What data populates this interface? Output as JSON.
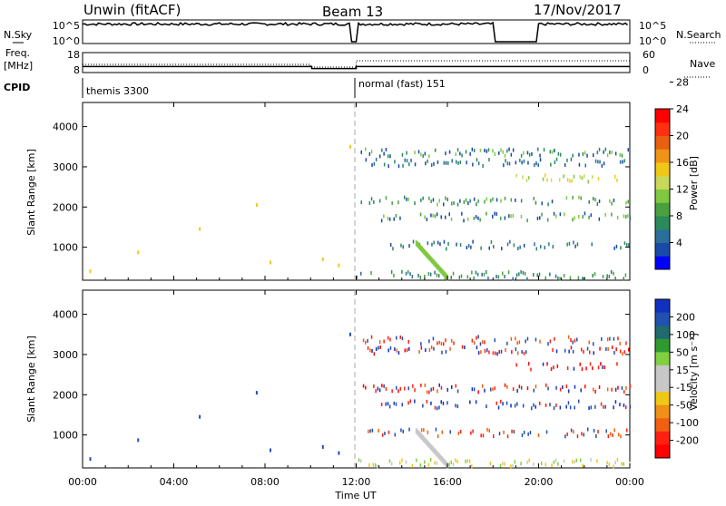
{
  "header": {
    "station": "Unwin (fitACF)",
    "beam": "Beam 13",
    "date": "17/Nov/2017"
  },
  "meta_panels": {
    "nsky_label": "N.Sky",
    "nsky_ticks": [
      "10^5",
      "10^0"
    ],
    "nsearch_label": "N.Search",
    "nsearch_ticks": [
      "10^5",
      "10^0"
    ],
    "freq_label_1": "Freq.",
    "freq_label_2": "[MHz]",
    "freq_ticks": [
      "18",
      "8"
    ],
    "nave_label": "Nave",
    "nave_ticks": [
      "60",
      "0"
    ],
    "cpid_label": "CPID",
    "cpid_segments": [
      {
        "name": "themis 3300",
        "start_hour": 0
      },
      {
        "name": "normal (fast) 151",
        "start_hour": 12
      }
    ],
    "data_gaps_hours": [
      [
        18.05,
        20.0
      ],
      [
        11.7,
        12.0
      ]
    ],
    "freq_steps": [
      {
        "from": 0,
        "to": 10.05,
        "mhz": 11
      },
      {
        "from": 10.05,
        "to": 12.0,
        "mhz": 10
      },
      {
        "from": 12.0,
        "to": 24,
        "mhz": 11
      }
    ]
  },
  "chart_data": [
    {
      "type": "heatmap",
      "name": "power-panel",
      "ylabel": "Slant Range [km]",
      "xlabel": "Time UT",
      "x_unit": "hours UT",
      "x_ticks": [
        "00:00",
        "04:00",
        "08:00",
        "12:00",
        "16:00",
        "20:00",
        "00:00"
      ],
      "xlim": [
        0,
        24
      ],
      "y_ticks": [
        1000,
        2000,
        3000,
        4000
      ],
      "ylim": [
        180,
        4600
      ],
      "colorbar": {
        "label": "Power [dB]",
        "ticks": [
          "4",
          "8",
          "12",
          "16",
          "20",
          "24",
          "28"
        ],
        "colors": [
          "#0000ff",
          "#1a4aa8",
          "#2c6e9a",
          "#2b8a5a",
          "#4aa040",
          "#80c840",
          "#c8d858",
          "#f0c818",
          "#f09418",
          "#e86010",
          "#ff3010",
          "#ff0000"
        ]
      },
      "scatter_bands": [
        {
          "range_km": 3100,
          "start_h": 12.4,
          "end_h": 24,
          "color_idx": [
            1,
            2,
            3
          ]
        },
        {
          "range_km": 3350,
          "start_h": 12.2,
          "end_h": 24,
          "color_idx": [
            1,
            3,
            5
          ]
        },
        {
          "range_km": 2700,
          "start_h": 19.0,
          "end_h": 24,
          "color_idx": [
            5,
            6,
            7
          ]
        },
        {
          "range_km": 2150,
          "start_h": 12.2,
          "end_h": 24,
          "color_idx": [
            3,
            4,
            5,
            1
          ]
        },
        {
          "range_km": 1750,
          "start_h": 13.0,
          "end_h": 24,
          "color_idx": [
            1,
            4,
            5
          ]
        },
        {
          "range_km": 1050,
          "start_h": 12.5,
          "end_h": 24,
          "color_idx": [
            1,
            2,
            3
          ]
        },
        {
          "range_km": 300,
          "start_h": 12.0,
          "end_h": 24,
          "color_idx": [
            2,
            3,
            4
          ]
        }
      ]
    },
    {
      "type": "heatmap",
      "name": "velocity-panel",
      "ylabel": "Slant Range [km]",
      "xlabel": "Time UT",
      "x_unit": "hours UT",
      "x_ticks": [
        "00:00",
        "04:00",
        "08:00",
        "12:00",
        "16:00",
        "20:00",
        "00:00"
      ],
      "xlim": [
        0,
        24
      ],
      "y_ticks": [
        1000,
        2000,
        3000,
        4000
      ],
      "ylim": [
        180,
        4600
      ],
      "colorbar": {
        "label": "Velocity [m s⁻¹]",
        "ticks": [
          "200",
          "100",
          "50",
          "15",
          "-15",
          "-50",
          "-100",
          "-200"
        ],
        "colors": [
          "#1030c0",
          "#2050b0",
          "#206a70",
          "#2f9a30",
          "#80d040",
          "#c8c8c8",
          "#c8c8c8",
          "#f0c818",
          "#f09018",
          "#f06010",
          "#ff2010",
          "#ff0000"
        ]
      },
      "scatter_bands": [
        {
          "range_km": 3100,
          "start_h": 12.4,
          "end_h": 24,
          "color_idx": [
            0,
            1,
            9,
            10,
            11
          ]
        },
        {
          "range_km": 3350,
          "start_h": 12.2,
          "end_h": 24,
          "color_idx": [
            1,
            10,
            9
          ]
        },
        {
          "range_km": 2700,
          "start_h": 19.0,
          "end_h": 24,
          "color_idx": [
            10,
            11,
            0
          ]
        },
        {
          "range_km": 2150,
          "start_h": 12.2,
          "end_h": 24,
          "color_idx": [
            0,
            1,
            10,
            11,
            9
          ]
        },
        {
          "range_km": 1750,
          "start_h": 13.0,
          "end_h": 24,
          "color_idx": [
            0,
            1,
            10
          ]
        },
        {
          "range_km": 1050,
          "start_h": 12.5,
          "end_h": 24,
          "color_idx": [
            1,
            9,
            10
          ]
        },
        {
          "range_km": 300,
          "start_h": 12.0,
          "end_h": 24,
          "color_idx": [
            4,
            5,
            7
          ]
        }
      ]
    }
  ],
  "early_points": [
    {
      "hour": 0.3,
      "range_km": 400
    },
    {
      "hour": 2.4,
      "range_km": 870
    },
    {
      "hour": 5.1,
      "range_km": 1450
    },
    {
      "hour": 7.6,
      "range_km": 2050
    },
    {
      "hour": 8.2,
      "range_km": 620
    },
    {
      "hour": 10.5,
      "range_km": 700
    },
    {
      "hour": 11.2,
      "range_km": 550
    },
    {
      "hour": 11.7,
      "range_km": 3500
    }
  ]
}
